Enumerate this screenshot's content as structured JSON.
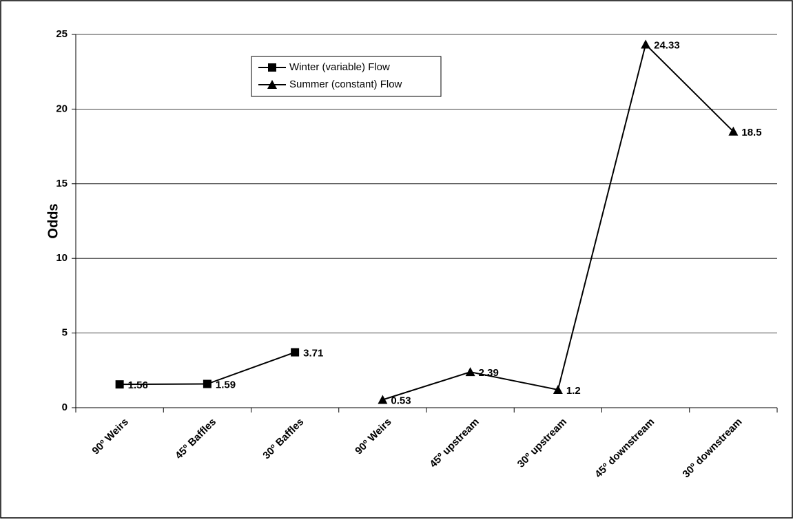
{
  "chart_data": {
    "type": "line",
    "y_label": "Odds",
    "categories": [
      "90º Weirs",
      "45º Baffles",
      "30º Baffles",
      "90º Weirs",
      "45º upstream",
      "30º upstream",
      "45º downstream",
      "30º downstream"
    ],
    "series": [
      {
        "name": "Winter (variable) Flow",
        "color": "#000000",
        "marker": "square",
        "values": [
          1.56,
          1.59,
          3.71,
          null,
          null,
          null,
          null,
          null
        ]
      },
      {
        "name": "Summer (constant) Flow",
        "color": "#000000",
        "marker": "triangle",
        "values": [
          null,
          null,
          null,
          0.53,
          2.39,
          1.2,
          24.33,
          18.5
        ]
      }
    ],
    "ylim": [
      0,
      25
    ],
    "yticks": [
      0,
      5,
      10,
      15,
      20,
      25
    ],
    "grid": true,
    "legend": "top-left"
  }
}
